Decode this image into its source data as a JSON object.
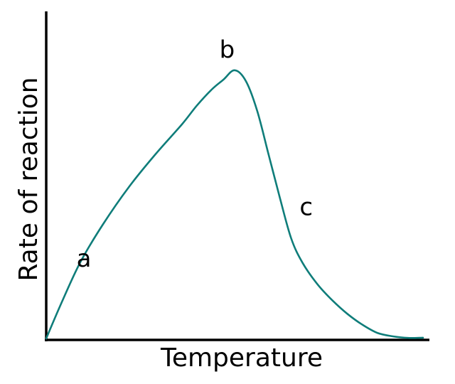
{
  "chart_data": {
    "type": "line",
    "title": "",
    "xlabel": "Temperature",
    "ylabel": "Rate of reaction",
    "xlim": [
      0,
      100
    ],
    "ylim": [
      0,
      100
    ],
    "grid": false,
    "legend": "none",
    "series": [
      {
        "color": "#0f7d7a",
        "x": [
          0,
          4,
          9,
          15,
          22,
          29,
          36,
          40,
          44,
          47,
          50,
          53,
          56,
          59,
          62,
          65,
          68,
          72,
          76,
          80,
          84,
          88,
          92,
          96,
          100
        ],
        "y": [
          0,
          13,
          28,
          42,
          56,
          68,
          79,
          86,
          92,
          95.5,
          99,
          95,
          84,
          68,
          52,
          37,
          28,
          20,
          14,
          9,
          5,
          2,
          0.8,
          0.2,
          0.3
        ]
      }
    ],
    "annotations": [
      {
        "text": "a",
        "x": 10,
        "y": 29
      },
      {
        "text": "b",
        "x": 48,
        "y": 106
      },
      {
        "text": "c",
        "x": 69,
        "y": 48
      }
    ]
  }
}
